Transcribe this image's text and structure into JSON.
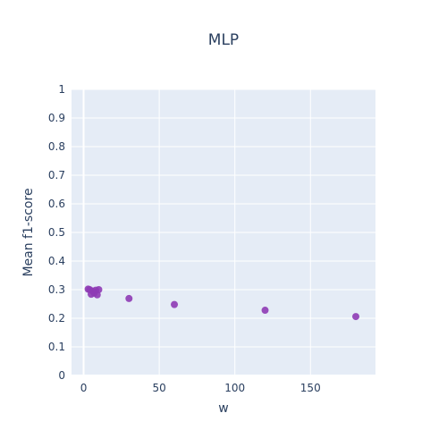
{
  "chart_data": {
    "type": "scatter",
    "title": "MLP",
    "xlabel": "w",
    "ylabel": "Mean f1-score",
    "xlim": [
      -8,
      193
    ],
    "ylim": [
      0,
      1
    ],
    "x_ticks": [
      0,
      50,
      100,
      150
    ],
    "y_ticks": [
      0,
      0.1,
      0.2,
      0.3,
      0.4,
      0.5,
      0.6,
      0.7,
      0.8,
      0.9,
      1
    ],
    "y_tick_labels": [
      "0",
      "0.1",
      "0.2",
      "0.3",
      "0.4",
      "0.5",
      "0.6",
      "0.7",
      "0.8",
      "0.9",
      "1"
    ],
    "grid": true,
    "legend": "none",
    "series": [
      {
        "color": "#8e3bb5",
        "points": [
          {
            "x": 3,
            "y": 0.302
          },
          {
            "x": 4,
            "y": 0.3
          },
          {
            "x": 5,
            "y": 0.284
          },
          {
            "x": 6,
            "y": 0.295
          },
          {
            "x": 7,
            "y": 0.288
          },
          {
            "x": 8,
            "y": 0.298
          },
          {
            "x": 9,
            "y": 0.282
          },
          {
            "x": 10,
            "y": 0.3
          },
          {
            "x": 30,
            "y": 0.269
          },
          {
            "x": 60,
            "y": 0.248
          },
          {
            "x": 120,
            "y": 0.228
          },
          {
            "x": 180,
            "y": 0.206
          }
        ]
      }
    ],
    "colors": {
      "plot_background": "#e5ecf6",
      "grid": "#ffffff",
      "text": "#2a3f5f"
    }
  }
}
